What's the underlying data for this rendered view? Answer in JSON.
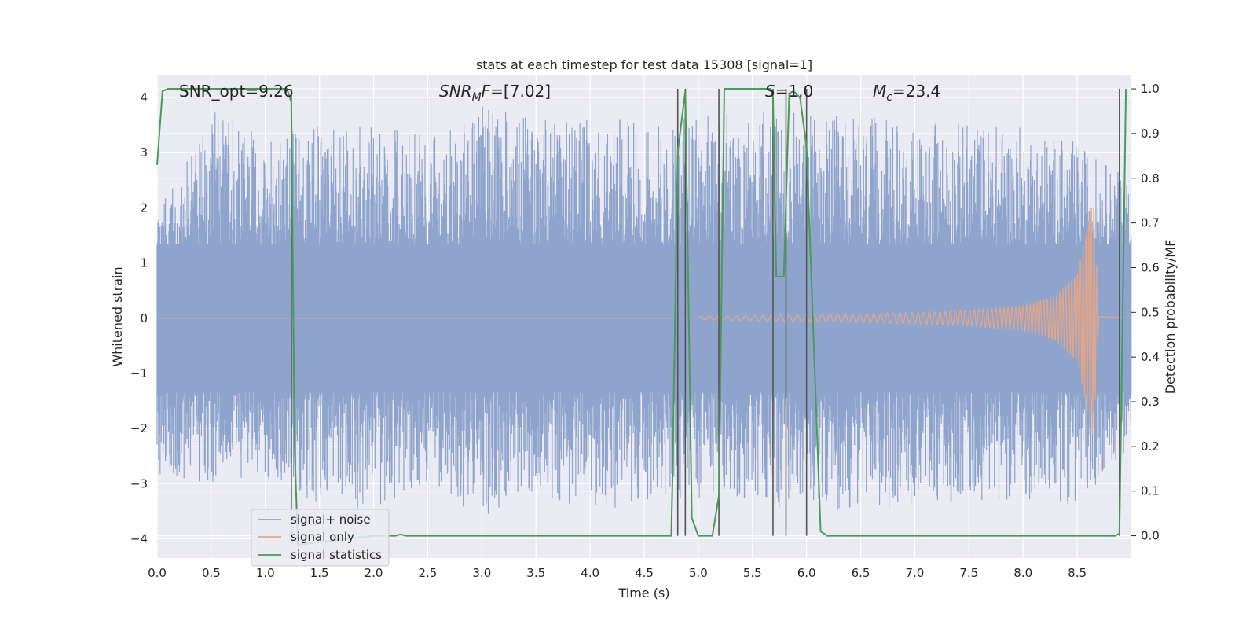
{
  "chart_data": {
    "type": "line",
    "title": "stats at each timestep for test data 15308 [signal=1]",
    "xlabel": "Time (s)",
    "ylabel_left": "Whitened strain",
    "ylabel_right": "Detection probability/MF",
    "xlim": [
      0.0,
      9.0
    ],
    "ylim_left": [
      -4.35,
      4.4
    ],
    "ylim_right": [
      -0.05,
      1.03
    ],
    "xticks": [
      0.0,
      0.5,
      1.0,
      1.5,
      2.0,
      2.5,
      3.0,
      3.5,
      4.0,
      4.5,
      5.0,
      5.5,
      6.0,
      6.5,
      7.0,
      7.5,
      8.0,
      8.5
    ],
    "xtick_labels": [
      "0.0",
      "0.5",
      "1.0",
      "1.5",
      "2.0",
      "2.5",
      "3.0",
      "3.5",
      "4.0",
      "4.5",
      "5.0",
      "5.5",
      "6.0",
      "6.5",
      "7.0",
      "7.5",
      "8.0",
      "8.5"
    ],
    "yticks_left": [
      4,
      3,
      2,
      1,
      0,
      -1,
      -2,
      -3,
      -4
    ],
    "ytick_labels_left": [
      "4",
      "3",
      "2",
      "1",
      "0",
      "−1",
      "−2",
      "−3",
      "−4"
    ],
    "yticks_right": [
      1.0,
      0.9,
      0.8,
      0.7,
      0.6,
      0.5,
      0.4,
      0.3,
      0.2,
      0.1,
      0.0
    ],
    "ytick_labels_right": [
      "1.0",
      "0.9",
      "0.8",
      "0.7",
      "0.6",
      "0.5",
      "0.4",
      "0.3",
      "0.2",
      "0.1",
      "0.0"
    ],
    "grid": true,
    "legend_position": "lower-left",
    "annotations": [
      {
        "id": "snr_opt",
        "text": "SNR_opt=9.26",
        "x": 0.2
      },
      {
        "id": "snr_mf",
        "text": "SNR_MF=[7.02]",
        "x": 2.6
      },
      {
        "id": "stat",
        "text": "S=1.0",
        "x": 5.6
      },
      {
        "id": "mc",
        "text": "M_c=23.4",
        "x": 6.6
      }
    ],
    "vertical_lines_x": [
      1.24,
      4.81,
      4.88,
      5.19,
      5.69,
      5.81,
      6.0,
      8.89
    ],
    "series": [
      {
        "name": "signal+ noise",
        "color": "#8fa4cc",
        "envelope": [
          {
            "x": 0.0,
            "max": 2.0,
            "min": -2.9
          },
          {
            "x": 0.5,
            "max": 3.8,
            "min": -3.0
          },
          {
            "x": 1.0,
            "max": 3.3,
            "min": -2.9
          },
          {
            "x": 1.5,
            "max": 3.5,
            "min": -3.4
          },
          {
            "x": 2.0,
            "max": 3.5,
            "min": -3.5
          },
          {
            "x": 2.5,
            "max": 3.3,
            "min": -3.1
          },
          {
            "x": 3.0,
            "max": 3.9,
            "min": -3.6
          },
          {
            "x": 3.5,
            "max": 3.6,
            "min": -3.2
          },
          {
            "x": 4.0,
            "max": 3.6,
            "min": -3.5
          },
          {
            "x": 4.5,
            "max": 3.6,
            "min": -3.4
          },
          {
            "x": 5.0,
            "max": 3.7,
            "min": -3.3
          },
          {
            "x": 5.5,
            "max": 3.8,
            "min": -3.4
          },
          {
            "x": 6.0,
            "max": 3.7,
            "min": -3.5
          },
          {
            "x": 6.5,
            "max": 3.7,
            "min": -3.5
          },
          {
            "x": 7.0,
            "max": 3.5,
            "min": -3.4
          },
          {
            "x": 7.5,
            "max": 3.6,
            "min": -3.3
          },
          {
            "x": 8.0,
            "max": 3.5,
            "min": -3.3
          },
          {
            "x": 8.5,
            "max": 3.2,
            "min": -3.4
          },
          {
            "x": 9.0,
            "max": 2.5,
            "min": -2.3
          }
        ]
      },
      {
        "name": "signal only",
        "color": "#e0a58a",
        "amplitude_envelope": [
          {
            "x": 5.0,
            "amp": 0.03
          },
          {
            "x": 6.0,
            "amp": 0.06
          },
          {
            "x": 7.0,
            "amp": 0.1
          },
          {
            "x": 7.5,
            "amp": 0.14
          },
          {
            "x": 8.0,
            "amp": 0.22
          },
          {
            "x": 8.3,
            "amp": 0.4
          },
          {
            "x": 8.5,
            "amp": 0.8
          },
          {
            "x": 8.65,
            "amp": 2.2
          },
          {
            "x": 8.7,
            "amp": 0.0
          }
        ]
      },
      {
        "name": "signal statistics",
        "color": "#4b9a55",
        "axis": "right",
        "points": [
          [
            0.0,
            0.83
          ],
          [
            0.05,
            0.995
          ],
          [
            0.1,
            1.0
          ],
          [
            1.2,
            1.0
          ],
          [
            1.24,
            0.97
          ],
          [
            1.27,
            0.2
          ],
          [
            1.3,
            -0.02
          ],
          [
            2.0,
            -0.0
          ],
          [
            2.2,
            -0.0
          ],
          [
            2.25,
            0.003
          ],
          [
            2.3,
            0.0
          ],
          [
            4.75,
            0.0
          ],
          [
            4.76,
            0.11
          ],
          [
            4.81,
            0.86
          ],
          [
            4.88,
            0.995
          ],
          [
            4.94,
            0.04
          ],
          [
            5.0,
            0.0
          ],
          [
            5.13,
            0.0
          ],
          [
            5.19,
            0.09
          ],
          [
            5.24,
            1.0
          ],
          [
            5.67,
            1.0
          ],
          [
            5.69,
            0.98
          ],
          [
            5.72,
            0.58
          ],
          [
            5.79,
            0.58
          ],
          [
            5.84,
            0.99
          ],
          [
            5.88,
            0.995
          ],
          [
            5.94,
            0.98
          ],
          [
            6.0,
            0.87
          ],
          [
            6.13,
            0.01
          ],
          [
            6.19,
            0.0
          ],
          [
            8.85,
            0.0
          ],
          [
            8.89,
            0.005
          ],
          [
            8.92,
            0.5
          ],
          [
            8.95,
            1.0
          ]
        ]
      }
    ]
  }
}
